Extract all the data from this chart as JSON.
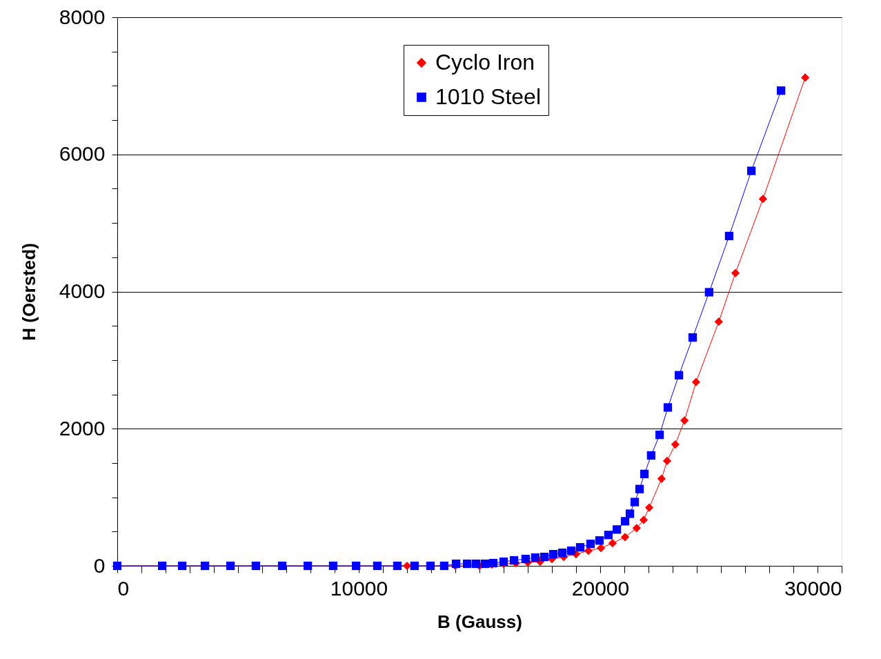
{
  "chart_data": {
    "type": "line",
    "xlabel": "B (Gauss)",
    "ylabel": "H (Oersted)",
    "xlim": [
      0,
      30000
    ],
    "ylim": [
      0,
      8000
    ],
    "xticks": [
      0,
      {
        "value": 1000,
        "label": null
      },
      {
        "value": 2000,
        "label": null
      },
      {
        "value": 3000,
        "label": null
      },
      {
        "value": 4000,
        "label": null
      },
      {
        "value": 5000,
        "label": null
      },
      {
        "value": 6000,
        "label": null
      },
      {
        "value": 7000,
        "label": null
      },
      {
        "value": 8000,
        "label": null
      },
      {
        "value": 9000,
        "label": null
      },
      10000,
      {
        "value": 11000,
        "label": null
      },
      {
        "value": 12000,
        "label": null
      },
      {
        "value": 13000,
        "label": null
      },
      {
        "value": 14000,
        "label": null
      },
      {
        "value": 15000,
        "label": null
      },
      {
        "value": 16000,
        "label": null
      },
      {
        "value": 17000,
        "label": null
      },
      {
        "value": 18000,
        "label": null
      },
      {
        "value": 19000,
        "label": null
      },
      20000,
      {
        "value": 21000,
        "label": null
      },
      {
        "value": 22000,
        "label": null
      },
      {
        "value": 23000,
        "label": null
      },
      {
        "value": 24000,
        "label": null
      },
      {
        "value": 25000,
        "label": null
      },
      {
        "value": 26000,
        "label": null
      },
      {
        "value": 27000,
        "label": null
      },
      {
        "value": 28000,
        "label": null
      },
      {
        "value": 29000,
        "label": null
      },
      30000
    ],
    "yticks": [
      0,
      {
        "value": 500,
        "label": null
      },
      {
        "value": 1000,
        "label": null
      },
      {
        "value": 1500,
        "label": null
      },
      2000,
      {
        "value": 2500,
        "label": null
      },
      {
        "value": 3000,
        "label": null
      },
      {
        "value": 3500,
        "label": null
      },
      4000,
      {
        "value": 4500,
        "label": null
      },
      {
        "value": 5000,
        "label": null
      },
      {
        "value": 5500,
        "label": null
      },
      6000,
      {
        "value": 6500,
        "label": null
      },
      {
        "value": 7000,
        "label": null
      },
      {
        "value": 7500,
        "label": null
      },
      8000
    ],
    "grid": "y",
    "legend": "top",
    "series": [
      {
        "name": "Cyclo Iron",
        "color": "#ff0000",
        "marker": "diamond",
        "x": [
          0,
          8940,
          12000,
          14000,
          15000,
          15510,
          16000,
          16510,
          17000,
          17510,
          18000,
          18490,
          19000,
          19510,
          20030,
          20510,
          21030,
          21510,
          21800,
          22030,
          22540,
          22770,
          23110,
          23490,
          23970,
          24910,
          25600,
          26740,
          28490
        ],
        "values": [
          0,
          0,
          0,
          0,
          0,
          20,
          30,
          40,
          50,
          60,
          100,
          130,
          170,
          220,
          260,
          330,
          420,
          550,
          670,
          850,
          1270,
          1530,
          1770,
          2120,
          2680,
          3560,
          4270,
          5350,
          7120
        ]
      },
      {
        "name": "1010 Steel",
        "color": "#0000ff",
        "marker": "square",
        "x": [
          0,
          1860,
          2690,
          3630,
          4690,
          5740,
          6830,
          7890,
          8940,
          9890,
          10770,
          11600,
          12310,
          12970,
          13540,
          14030,
          14490,
          14860,
          15230,
          15570,
          16000,
          16430,
          16910,
          17310,
          17690,
          18060,
          18430,
          18800,
          19170,
          19600,
          19970,
          20340,
          20690,
          21030,
          21230,
          21430,
          21630,
          21830,
          22110,
          22460,
          22800,
          23260,
          23830,
          24510,
          25340,
          26260,
          27490
        ],
        "values": [
          0,
          0,
          0,
          0,
          0,
          0,
          0,
          0,
          0,
          0,
          0,
          0,
          0,
          0,
          0,
          30,
          30,
          30,
          30,
          40,
          60,
          80,
          100,
          120,
          130,
          170,
          190,
          220,
          270,
          320,
          370,
          450,
          530,
          650,
          760,
          930,
          1120,
          1340,
          1610,
          1910,
          2310,
          2780,
          3330,
          3990,
          4810,
          5760,
          6930
        ]
      }
    ]
  }
}
